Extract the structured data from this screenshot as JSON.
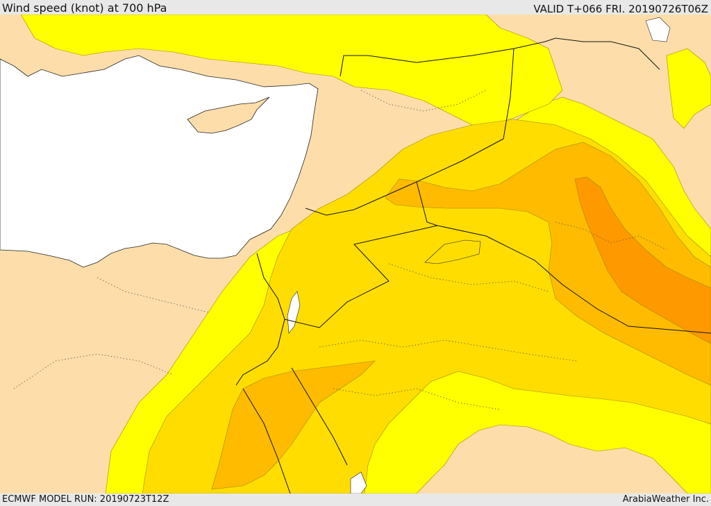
{
  "header": {
    "title": "Wind speed (knot) at 700 hPa",
    "valid": "VALID T+066 FRI. 20190726T06Z"
  },
  "footer": {
    "model_run": "ECMWF MODEL RUN: 20190723T12Z",
    "credit": "ArabiaWeather Inc."
  },
  "colors": {
    "land": "#fddeaa",
    "sea": "#ffffff",
    "band_1": "#ffff00",
    "band_2": "#ffdd00",
    "band_3": "#ffbb00",
    "band_4": "#ff9900",
    "frame": "#e8e8e8"
  }
}
